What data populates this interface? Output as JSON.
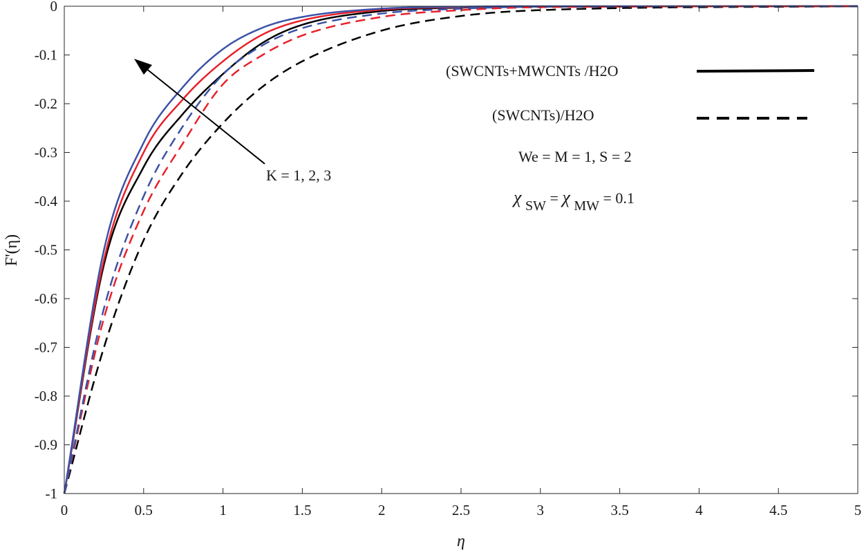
{
  "chart_data": {
    "type": "line",
    "xlabel": "η",
    "ylabel": "F'(η)",
    "xlim": [
      0,
      5
    ],
    "ylim": [
      -1,
      0
    ],
    "x_ticks": [
      0,
      0.5,
      1,
      1.5,
      2,
      2.5,
      3,
      3.5,
      4,
      4.5,
      5
    ],
    "x_tick_labels": [
      "0",
      "0.5",
      "1",
      "1.5",
      "2",
      "2.5",
      "3",
      "3.5",
      "4",
      "4.5",
      "5"
    ],
    "y_ticks": [
      0,
      -0.1,
      -0.2,
      -0.3,
      -0.4,
      -0.5,
      -0.6,
      -0.7,
      -0.8,
      -0.9,
      -1
    ],
    "y_tick_labels": [
      "0",
      "-0.1",
      "-0.2",
      "-0.3",
      "-0.4",
      "-0.5",
      "-0.6",
      "-0.7",
      "-0.8",
      "-0.9",
      "-1"
    ],
    "grid": false,
    "legend": {
      "placement": "top-right",
      "entries": [
        {
          "label": "(SWCNTs+MWCNTs /H2O",
          "style": "solid",
          "color": "#000000"
        },
        {
          "label": "(SWCNTs)/H2O",
          "style": "dashed",
          "color": "#000000"
        }
      ]
    },
    "annotations": {
      "arrow_label": "K = 1, 2, 3",
      "params_line1": "We =  M = 1, S = 2",
      "chi_symbol": "χ",
      "chi_sub1": "SW",
      "chi_eq": "=",
      "chi_sub2": "MW",
      "chi_value": " = 0.1"
    },
    "series": [
      {
        "style": "solid",
        "color": "#000000",
        "x": [
          0,
          0.25,
          0.5,
          0.75,
          1,
          1.25,
          1.5,
          2,
          2.5,
          3,
          5
        ],
        "y": [
          -1,
          -0.53,
          -0.33,
          -0.22,
          -0.139,
          -0.075,
          -0.038,
          -0.01,
          -0.003,
          -0.001,
          0
        ]
      },
      {
        "style": "solid",
        "color": "#e8202a",
        "x": [
          0,
          0.25,
          0.5,
          0.75,
          1,
          1.25,
          1.5,
          2,
          2.5,
          3,
          5
        ],
        "y": [
          -1,
          -0.52,
          -0.3,
          -0.19,
          -0.113,
          -0.058,
          -0.029,
          -0.007,
          -0.002,
          -0.001,
          0
        ]
      },
      {
        "style": "solid",
        "color": "#3b52a6",
        "x": [
          0,
          0.25,
          0.5,
          0.75,
          1,
          1.25,
          1.5,
          2,
          2.5,
          3,
          5
        ],
        "y": [
          -1,
          -0.5,
          -0.28,
          -0.165,
          -0.088,
          -0.044,
          -0.022,
          -0.005,
          -0.001,
          0,
          0
        ]
      },
      {
        "style": "dashed",
        "color": "#000000",
        "x": [
          0,
          0.25,
          0.5,
          0.75,
          1,
          1.25,
          1.5,
          2,
          2.5,
          3,
          5
        ],
        "y": [
          -1,
          -0.7,
          -0.48,
          -0.34,
          -0.24,
          -0.165,
          -0.113,
          -0.05,
          -0.02,
          -0.008,
          0
        ]
      },
      {
        "style": "dashed",
        "color": "#e8202a",
        "x": [
          0,
          0.25,
          0.5,
          0.75,
          1,
          1.25,
          1.5,
          2,
          2.5,
          3,
          5
        ],
        "y": [
          -1,
          -0.64,
          -0.42,
          -0.28,
          -0.16,
          -0.1,
          -0.06,
          -0.022,
          -0.008,
          -0.002,
          0
        ]
      },
      {
        "style": "dashed",
        "color": "#3b52a6",
        "x": [
          0,
          0.25,
          0.5,
          0.75,
          1,
          1.25,
          1.5,
          2,
          2.5,
          3,
          5
        ],
        "y": [
          -1,
          -0.62,
          -0.39,
          -0.245,
          -0.14,
          -0.08,
          -0.045,
          -0.015,
          -0.005,
          -0.001,
          0
        ]
      }
    ]
  }
}
